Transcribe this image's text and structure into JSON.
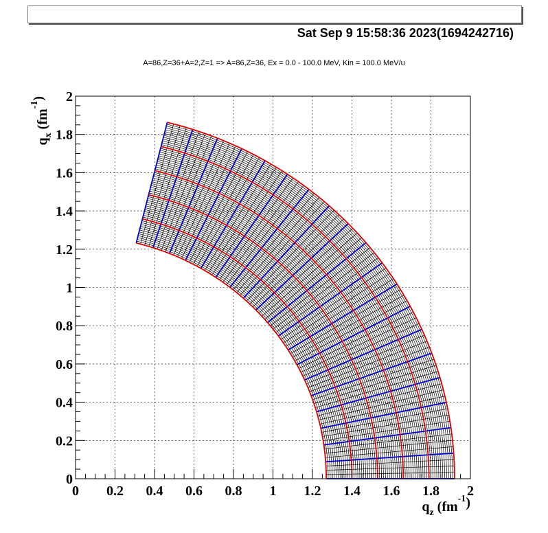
{
  "header": {
    "timestamp": "Sat Sep  9 15:58:36 2023(1694242716)",
    "subtitle": "A=86,Z=36+A=2,Z=1 => A=86,Z=36, Ex =  0.0 - 100.0 MeV, Kin =  100.0 MeV/u"
  },
  "chart_data": {
    "type": "line",
    "title": "A=86,Z=36+A=2,Z=1 => A=86,Z=36, Ex =  0.0 - 100.0 MeV, Kin =  100.0 MeV/u",
    "xlabel": "qz (fm-1)",
    "ylabel": "qx (fm-1)",
    "xlim": [
      0,
      2
    ],
    "ylim": [
      0,
      2
    ],
    "grid": true,
    "x_ticks": [
      "0",
      "0.2",
      "0.4",
      "0.6",
      "0.8",
      "1",
      "1.2",
      "1.4",
      "1.6",
      "1.8",
      "2"
    ],
    "y_ticks": [
      "0",
      "0.2",
      "0.4",
      "0.6",
      "0.8",
      "1",
      "1.2",
      "1.4",
      "1.6",
      "1.8",
      "2"
    ],
    "kinematic_map": {
      "q_min": 1.27,
      "q_max": 1.92,
      "theta_max_deg": 76,
      "dense_lines": {
        "radial_count": 76,
        "arc_count": 65
      },
      "blue_series": {
        "name": "constant-angle lines (blue)",
        "color": "#0000cc",
        "values_theta_deg": [
          0,
          4,
          8,
          12,
          16,
          20,
          24,
          28,
          32,
          36,
          40,
          44,
          48,
          52,
          56,
          60,
          64,
          68,
          72,
          76
        ]
      },
      "red_series": {
        "name": "constant-momentum arcs (red)",
        "color": "#dd0000",
        "values_q": [
          1.27,
          1.4,
          1.53,
          1.66,
          1.79,
          1.92
        ]
      },
      "fine_color": "#000000"
    }
  },
  "axis_labels": {
    "x": {
      "base": "q",
      "sub": "z",
      "unit": "(fm",
      "sup": "-1",
      "close": ")"
    },
    "y": {
      "base": "q",
      "sub": "x",
      "unit": "(fm",
      "sup": "-1",
      "close": ")"
    }
  }
}
